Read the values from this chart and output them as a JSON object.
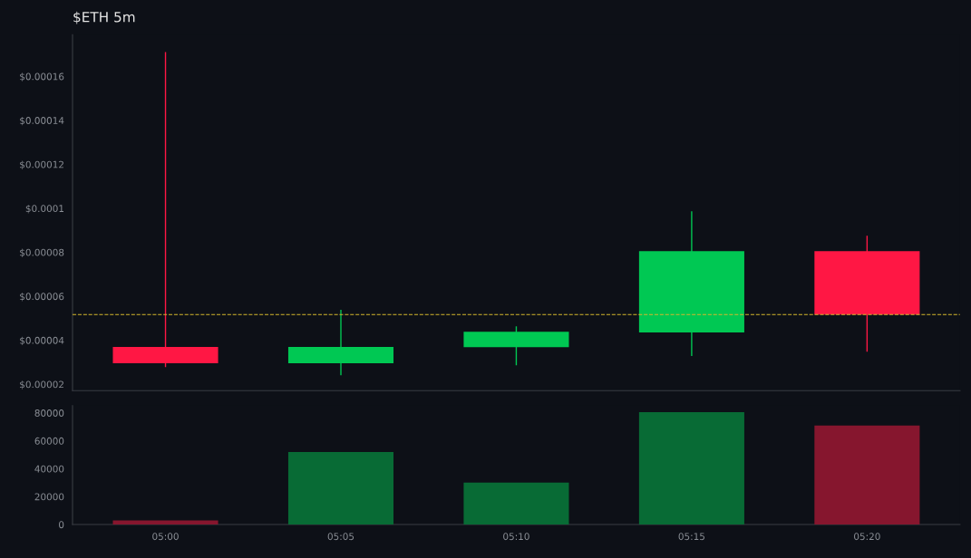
{
  "chart_data": [
    {
      "type": "candlestick",
      "title": "$ETH 5m",
      "categories": [
        null,
        null,
        null,
        null,
        null
      ],
      "ohlc": [
        [
          3.7e-05,
          0.000171,
          2.78e-05,
          2.95e-05
        ],
        [
          2.95e-05,
          5.38e-05,
          2.41e-05,
          3.7e-05
        ],
        [
          3.69e-05,
          4.63e-05,
          2.86e-05,
          4.39e-05
        ],
        [
          4.35e-05,
          9.86e-05,
          3.28e-05,
          8.05e-05
        ],
        [
          8.05e-05,
          8.75e-05,
          3.48e-05,
          5.17e-05
        ]
      ],
      "colors": [
        "#ff1744",
        "#00c853",
        "#00c853",
        "#00c853",
        "#ff1744"
      ],
      "ylim": [
        1.71e-05,
        0.000179
      ],
      "yticks": [
        {
          "value": 2e-05,
          "label": "$0.00002"
        },
        {
          "value": 4e-05,
          "label": "$0.00004"
        },
        {
          "value": 6e-05,
          "label": "$0.00006"
        },
        {
          "value": 8e-05,
          "label": "$0.00008"
        },
        {
          "value": 0.0001,
          "label": "$0.0001"
        },
        {
          "value": 0.00012,
          "label": "$0.00012"
        },
        {
          "value": 0.00014,
          "label": "$0.00014"
        },
        {
          "value": 0.00016,
          "label": "$0.00016"
        }
      ],
      "ref_lines": [
        {
          "axis": "y",
          "value": 5.17e-05,
          "color": "#d4b72c",
          "line_style": "dashed"
        }
      ],
      "tick_labels": "y",
      "grid": false,
      "legend": false
    },
    {
      "type": "bar",
      "categories": [
        "05:00",
        "05:05",
        "05:10",
        "05:15",
        "05:20"
      ],
      "values": [
        3000,
        52000,
        30000,
        80500,
        71000
      ],
      "colors": [
        "#86162e",
        "#086b35",
        "#086b35",
        "#086b35",
        "#86162e"
      ],
      "ylim": [
        0,
        85200
      ],
      "yticks": [
        0,
        20000,
        40000,
        60000,
        80000
      ],
      "grid": false,
      "legend": false
    }
  ]
}
